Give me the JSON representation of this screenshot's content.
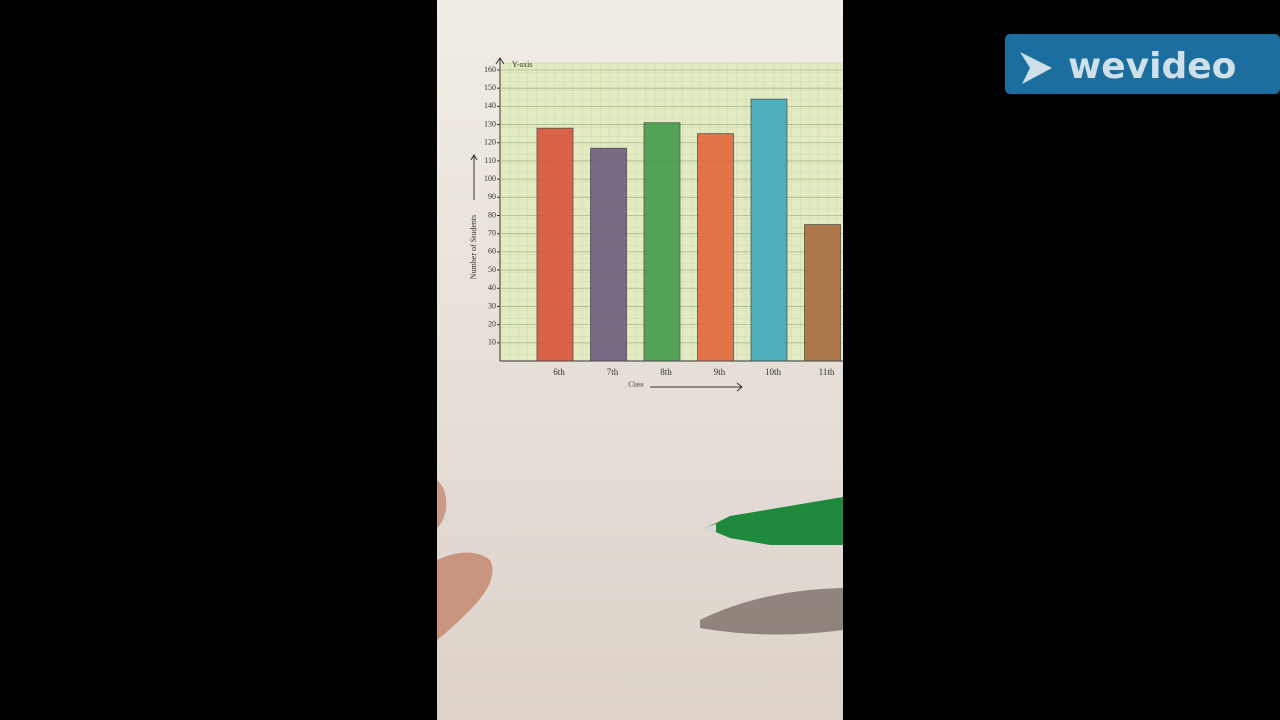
{
  "chart_data": {
    "type": "bar",
    "y_marker": "Y-axis",
    "ylabel": "Number of Students",
    "xlabel": "Class",
    "categories": [
      "6th",
      "7th",
      "8th",
      "9th",
      "10th",
      "11th"
    ],
    "values": [
      128,
      117,
      131,
      125,
      144,
      75
    ],
    "colors": [
      "#d9543c",
      "#6e5e7e",
      "#459c4c",
      "#e2683a",
      "#3eaabb",
      "#a86c3e"
    ],
    "ylim": [
      0,
      160
    ],
    "yticks": [
      10,
      20,
      30,
      40,
      50,
      60,
      70,
      80,
      90,
      100,
      110,
      120,
      130,
      140,
      150,
      160
    ],
    "grid": true
  },
  "watermark": "wevideo"
}
